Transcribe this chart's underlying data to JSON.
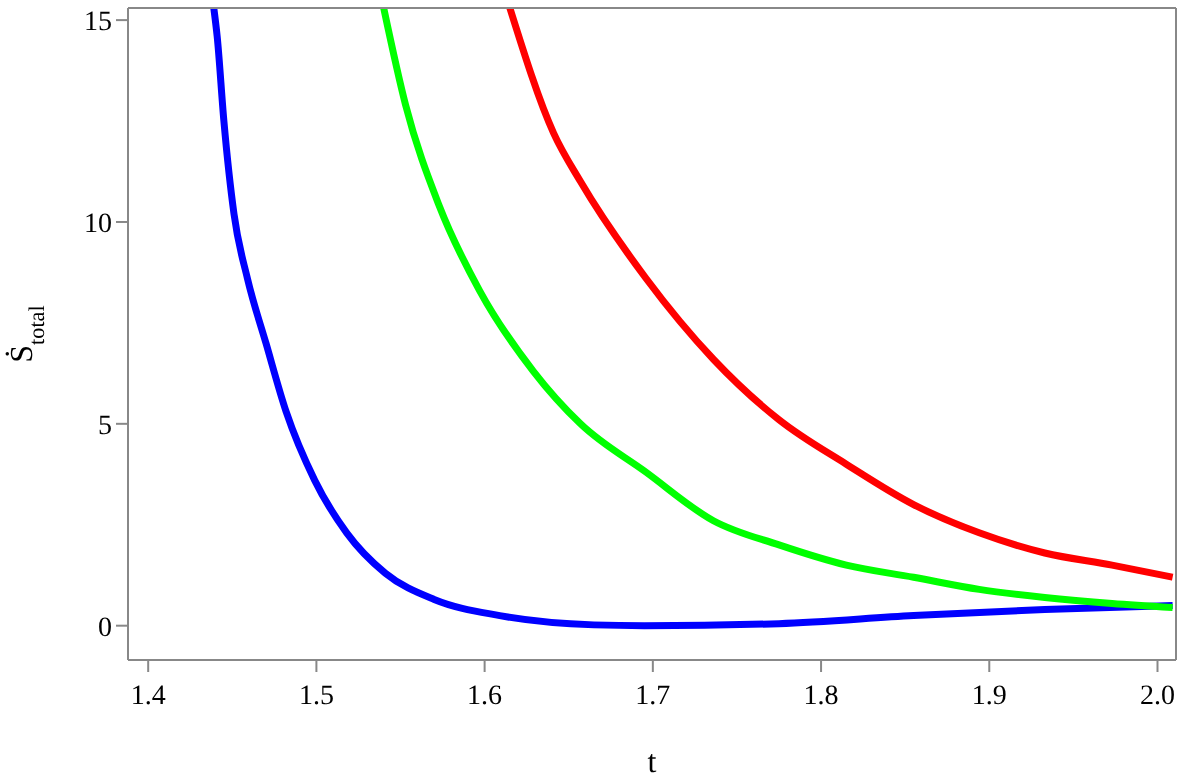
{
  "chart_data": {
    "type": "line",
    "xlabel": "t",
    "ylabel": "Ṡ$_{total}$",
    "xlim": [
      1.388,
      2.011
    ],
    "ylim": [
      -0.85,
      15.3
    ],
    "xticks": [
      {
        "value": 1.4,
        "label": "1.4"
      },
      {
        "value": 1.5,
        "label": "1.5"
      },
      {
        "value": 1.6,
        "label": "1.6"
      },
      {
        "value": 1.7,
        "label": "1.7"
      },
      {
        "value": 1.8,
        "label": "1.8"
      },
      {
        "value": 1.9,
        "label": "1.9"
      },
      {
        "value": 2.0,
        "label": "2.0"
      }
    ],
    "yticks": [
      0,
      5,
      10,
      15
    ],
    "line_style": "solid",
    "marker": "none",
    "series": [
      {
        "color": "#0000ff",
        "x": [
          1.439,
          1.441,
          1.445,
          1.451,
          1.459,
          1.47,
          1.482,
          1.499,
          1.518,
          1.541,
          1.57,
          1.609,
          1.665,
          1.695,
          1.775,
          1.855,
          1.933,
          2.009
        ],
        "values": [
          15.3,
          14.6,
          12.5,
          10.2,
          8.6,
          7.0,
          5.3,
          3.6,
          2.3,
          1.3,
          0.65,
          0.25,
          0.02,
          0.0,
          0.05,
          0.25,
          0.4,
          0.5
        ]
      },
      {
        "color": "#00ff00",
        "x": [
          1.54,
          1.553,
          1.573,
          1.597,
          1.629,
          1.657,
          1.696,
          1.736,
          1.775,
          1.815,
          1.855,
          1.894,
          1.933,
          1.973,
          2.009
        ],
        "values": [
          15.3,
          12.9,
          10.4,
          8.3,
          6.3,
          5.0,
          3.8,
          2.6,
          2.0,
          1.5,
          1.2,
          0.9,
          0.7,
          0.55,
          0.45
        ]
      },
      {
        "color": "#ff0000",
        "x": [
          1.615,
          1.641,
          1.657,
          1.696,
          1.736,
          1.775,
          1.815,
          1.855,
          1.894,
          1.933,
          1.973,
          2.009
        ],
        "values": [
          15.3,
          12.2,
          11.0,
          8.6,
          6.6,
          5.1,
          4.0,
          3.0,
          2.3,
          1.8,
          1.5,
          1.2
        ]
      }
    ]
  }
}
